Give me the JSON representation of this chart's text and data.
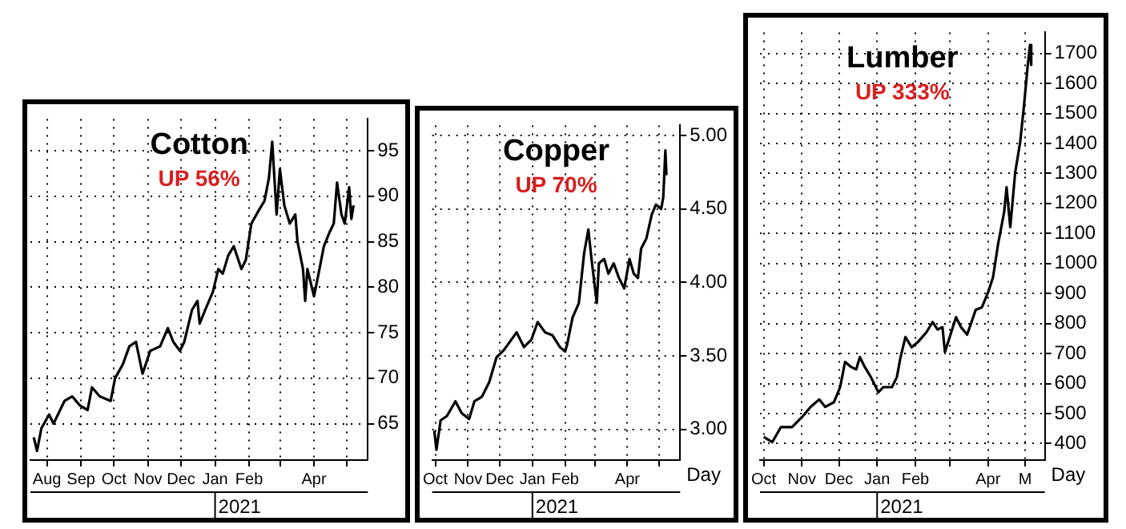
{
  "chart_data": [
    {
      "type": "line",
      "title": "Cotton",
      "subtitle": "UP 56%",
      "x": [
        "2020-07-20",
        "2020-07-23",
        "2020-07-27",
        "2020-08-03",
        "2020-08-07",
        "2020-08-17",
        "2020-08-24",
        "2020-08-31",
        "2020-09-07",
        "2020-09-11",
        "2020-09-18",
        "2020-09-28",
        "2020-10-02",
        "2020-10-09",
        "2020-10-15",
        "2020-10-21",
        "2020-10-27",
        "2020-11-03",
        "2020-11-12",
        "2020-11-19",
        "2020-11-24",
        "2020-11-30",
        "2020-12-04",
        "2020-12-11",
        "2020-12-16",
        "2020-12-18",
        "2020-12-23",
        "2020-12-30",
        "2021-01-04",
        "2021-01-08",
        "2021-01-13",
        "2021-01-18",
        "2021-01-25",
        "2021-01-29",
        "2021-02-03",
        "2021-02-10",
        "2021-02-15",
        "2021-02-19",
        "2021-02-22",
        "2021-02-24",
        "2021-02-26",
        "2021-03-01",
        "2021-03-05",
        "2021-03-10",
        "2021-03-15",
        "2021-03-17",
        "2021-03-22",
        "2021-03-24",
        "2021-03-26",
        "2021-04-01",
        "2021-04-06",
        "2021-04-10",
        "2021-04-15",
        "2021-04-19",
        "2021-04-22",
        "2021-04-26",
        "2021-04-29",
        "2021-05-03",
        "2021-05-05",
        "2021-05-07"
      ],
      "series": [
        {
          "color": "#000000",
          "values": [
            63.5,
            62,
            64.5,
            66,
            65,
            67.5,
            68,
            67,
            66.5,
            69,
            68,
            67.5,
            70,
            71.5,
            73.5,
            74,
            70.5,
            73,
            73.5,
            75.5,
            74,
            73,
            74,
            77.5,
            78.5,
            76,
            77.5,
            79.5,
            82,
            81.5,
            83.5,
            84.5,
            82,
            83,
            87,
            88.5,
            89.5,
            92,
            96,
            92,
            88,
            93,
            89,
            87,
            88,
            85,
            82,
            78.5,
            82,
            79,
            82,
            84.5,
            86,
            87,
            91.5,
            88,
            87,
            91,
            87.5,
            89
          ]
        }
      ],
      "xlim": [
        "2020-07-17",
        "2021-05-20"
      ],
      "xticks": [
        {
          "value": "2020-08-01",
          "label": "Aug"
        },
        {
          "value": "2020-09-01",
          "label": "Sep"
        },
        {
          "value": "2020-10-01",
          "label": "Oct"
        },
        {
          "value": "2020-11-01",
          "label": "Nov"
        },
        {
          "value": "2020-12-01",
          "label": "Dec"
        },
        {
          "value": "2021-01-01",
          "label": "Jan"
        },
        {
          "value": "2021-02-01",
          "label": "Feb"
        },
        {
          "value": "2021-03-01",
          "label": null
        },
        {
          "value": "2021-04-01",
          "label": "Apr"
        },
        {
          "value": "2021-05-01",
          "label": null
        }
      ],
      "ylim": [
        61,
        98.5
      ],
      "yticks": [
        65,
        70,
        75,
        80,
        85,
        90,
        95
      ],
      "grid": true,
      "annotations": [
        "2021"
      ]
    },
    {
      "type": "line",
      "title": "Copper",
      "subtitle": "UP 70%",
      "x": [
        "2020-09-30",
        "2020-10-02",
        "2020-10-06",
        "2020-10-12",
        "2020-10-20",
        "2020-10-26",
        "2020-11-02",
        "2020-11-07",
        "2020-11-14",
        "2020-11-21",
        "2020-11-28",
        "2020-12-05",
        "2020-12-12",
        "2020-12-17",
        "2020-12-24",
        "2020-12-31",
        "2021-01-06",
        "2021-01-13",
        "2021-01-20",
        "2021-01-27",
        "2021-02-01",
        "2021-02-03",
        "2021-02-08",
        "2021-02-14",
        "2021-02-19",
        "2021-02-23",
        "2021-02-26",
        "2021-03-03",
        "2021-03-05",
        "2021-03-10",
        "2021-03-14",
        "2021-03-19",
        "2021-03-24",
        "2021-03-29",
        "2021-04-03",
        "2021-04-07",
        "2021-04-11",
        "2021-04-14",
        "2021-04-19",
        "2021-04-24",
        "2021-04-28",
        "2021-05-03",
        "2021-05-05",
        "2021-05-07",
        "2021-05-08"
      ],
      "series": [
        {
          "color": "#000000",
          "values": [
            2.99,
            2.86,
            3.06,
            3.09,
            3.19,
            3.11,
            3.07,
            3.19,
            3.22,
            3.32,
            3.49,
            3.54,
            3.61,
            3.66,
            3.56,
            3.61,
            3.73,
            3.66,
            3.64,
            3.56,
            3.53,
            3.58,
            3.76,
            3.86,
            4.2,
            4.36,
            4.16,
            3.86,
            4.13,
            4.16,
            4.06,
            4.13,
            4.03,
            3.96,
            4.16,
            4.06,
            4.03,
            4.23,
            4.3,
            4.46,
            4.53,
            4.5,
            4.58,
            4.9,
            4.73
          ]
        }
      ],
      "xlim": [
        "2020-09-28",
        "2021-05-21"
      ],
      "xticks": [
        {
          "value": "2020-10-01",
          "label": "Oct"
        },
        {
          "value": "2020-11-01",
          "label": "Nov"
        },
        {
          "value": "2020-12-01",
          "label": "Dec"
        },
        {
          "value": "2021-01-01",
          "label": "Jan"
        },
        {
          "value": "2021-02-01",
          "label": "Feb"
        },
        {
          "value": "2021-03-01",
          "label": null
        },
        {
          "value": "2021-04-01",
          "label": "Apr"
        },
        {
          "value": "2021-05-01",
          "label": null
        }
      ],
      "ylim": [
        2.79,
        5.07
      ],
      "yticks": [
        {
          "value": 3,
          "label": "3.00"
        },
        {
          "value": 3.5,
          "label": "3.50"
        },
        {
          "value": 4,
          "label": "4.00"
        },
        {
          "value": 4.5,
          "label": "4.50"
        },
        {
          "value": 5,
          "label": "5.00"
        }
      ],
      "grid": true,
      "annotations": [
        "2021",
        "Day"
      ]
    },
    {
      "type": "line",
      "title": "Lumber",
      "subtitle": "UP 333%",
      "x": [
        "2020-10-01",
        "2020-10-08",
        "2020-10-15",
        "2020-10-24",
        "2020-11-01",
        "2020-11-08",
        "2020-11-15",
        "2020-11-20",
        "2020-11-27",
        "2020-12-02",
        "2020-12-06",
        "2020-12-11",
        "2020-12-15",
        "2020-12-18",
        "2020-12-22",
        "2020-12-27",
        "2021-01-02",
        "2021-01-06",
        "2021-01-13",
        "2021-01-17",
        "2021-01-20",
        "2021-01-24",
        "2021-01-29",
        "2021-02-03",
        "2021-02-10",
        "2021-02-15",
        "2021-02-19",
        "2021-02-23",
        "2021-02-25",
        "2021-03-06",
        "2021-03-10",
        "2021-03-15",
        "2021-03-22",
        "2021-03-27",
        "2021-04-01",
        "2021-04-05",
        "2021-04-09",
        "2021-04-14",
        "2021-04-16",
        "2021-04-19",
        "2021-04-23",
        "2021-04-27",
        "2021-04-30",
        "2021-05-03",
        "2021-05-05",
        "2021-05-06"
      ],
      "series": [
        {
          "color": "#000000",
          "values": [
            422,
            405,
            455,
            455,
            488,
            522,
            547,
            522,
            538,
            588,
            672,
            655,
            647,
            688,
            655,
            621,
            571,
            588,
            588,
            621,
            688,
            755,
            721,
            738,
            771,
            805,
            780,
            788,
            705,
            821,
            788,
            763,
            846,
            854,
            904,
            954,
            1062,
            1171,
            1254,
            1121,
            1304,
            1404,
            1520,
            1653,
            1728,
            1662
          ]
        }
      ],
      "xlim": [
        "2020-09-28",
        "2021-05-17"
      ],
      "xticks": [
        {
          "value": "2020-10-01",
          "label": "Oct"
        },
        {
          "value": "2020-11-01",
          "label": "Nov"
        },
        {
          "value": "2020-12-01",
          "label": "Dec"
        },
        {
          "value": "2021-01-01",
          "label": "Jan"
        },
        {
          "value": "2021-02-01",
          "label": "Feb"
        },
        {
          "value": "2021-03-01",
          "label": null
        },
        {
          "value": "2021-04-01",
          "label": "Apr"
        },
        {
          "value": "2021-05-01",
          "label": "M"
        }
      ],
      "ylim": [
        345,
        1770
      ],
      "yticks": [
        400,
        500,
        600,
        700,
        800,
        900,
        1000,
        1100,
        1200,
        1300,
        1400,
        1500,
        1600,
        1700
      ],
      "grid": true,
      "annotations": [
        "2021",
        "Day"
      ]
    }
  ]
}
